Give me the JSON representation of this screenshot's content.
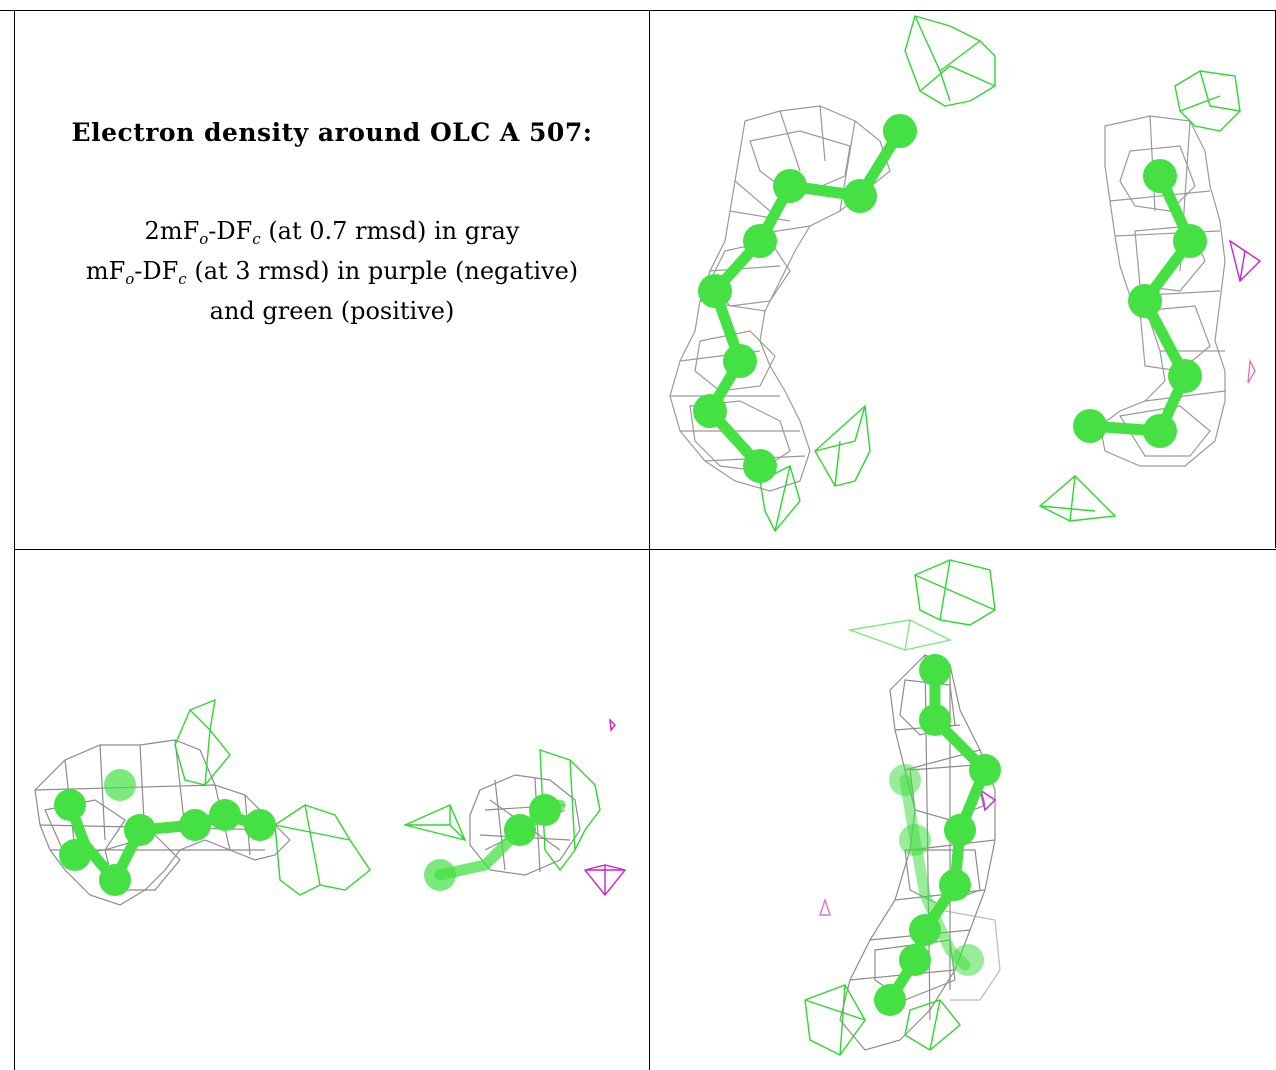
{
  "caption": {
    "title": "Electron density around OLC A 507:",
    "line1": {
      "a": "2mF",
      "s1": "o",
      "b": "-DF",
      "s2": "c",
      "rest": " (at 0.7 rmsd) in gray"
    },
    "line2": {
      "a": "mF",
      "s1": "o",
      "b": "-DF",
      "s2": "c",
      "rest": " (at 3 rmsd) in purple (negative)"
    },
    "line3": "and green (positive)"
  },
  "colors": {
    "border": "#000000",
    "mesh_gray": "#8c8c8c",
    "model_green": "#44e044",
    "positive_green": "#2ed82e",
    "negative_purple": "#cc22cc"
  },
  "icons": [
    "molecule-model-icon",
    "density-mesh-icon"
  ]
}
